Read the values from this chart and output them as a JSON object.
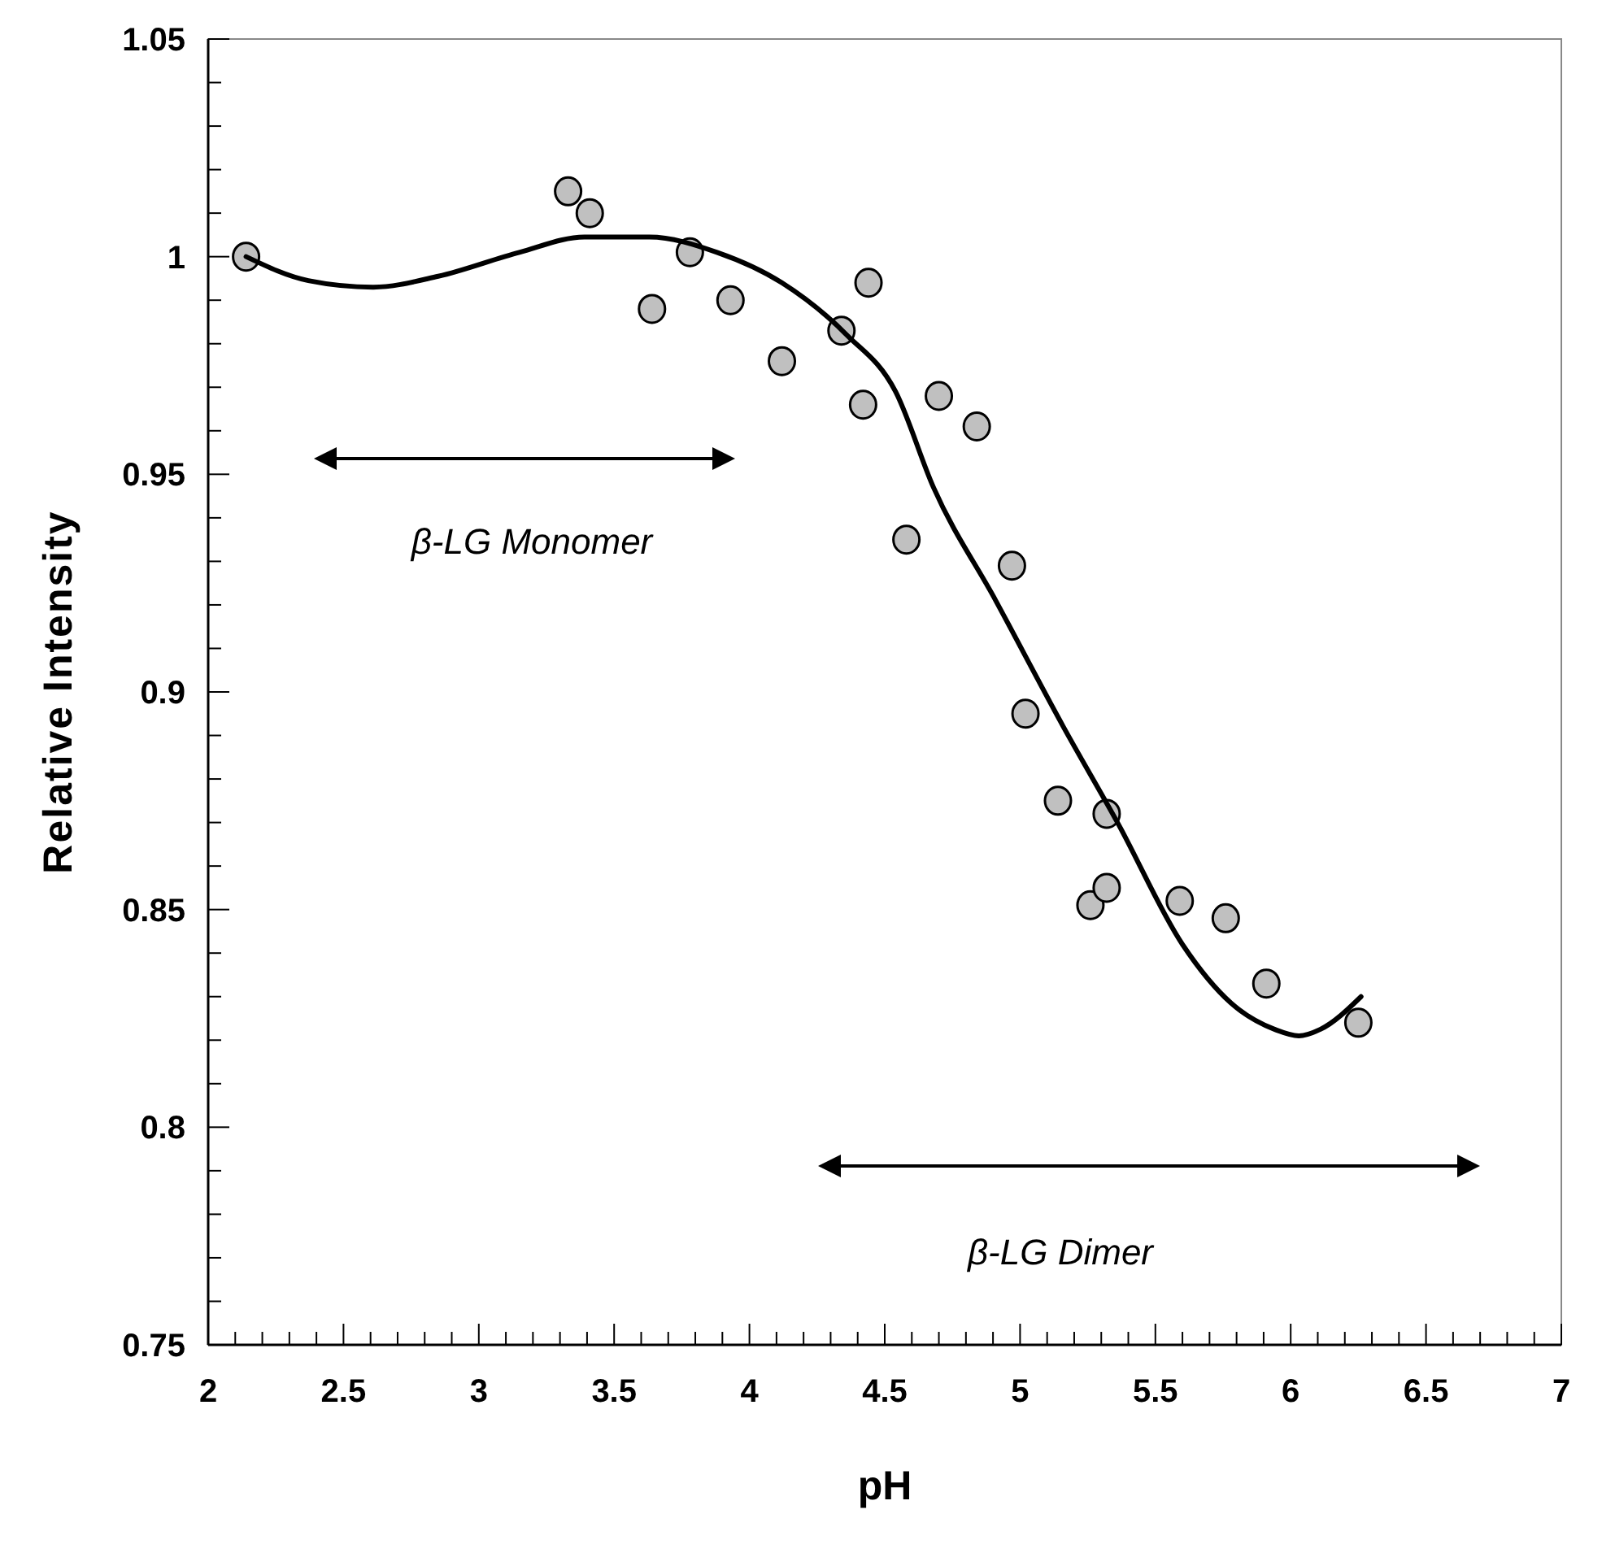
{
  "chart_data": {
    "type": "scatter",
    "xlabel": "pH",
    "ylabel": "Relative Intensity",
    "xlim": [
      2,
      7
    ],
    "ylim": [
      0.75,
      1.05
    ],
    "xticks": [
      2,
      {
        "value": 2.1,
        "label": null
      },
      {
        "value": 2.2,
        "label": null
      },
      {
        "value": 2.3,
        "label": null
      },
      {
        "value": 2.4,
        "label": null
      },
      2.5,
      {
        "value": 2.6,
        "label": null
      },
      {
        "value": 2.7,
        "label": null
      },
      {
        "value": 2.8,
        "label": null
      },
      {
        "value": 2.9,
        "label": null
      },
      3,
      {
        "value": 3.1,
        "label": null
      },
      {
        "value": 3.2,
        "label": null
      },
      {
        "value": 3.3,
        "label": null
      },
      {
        "value": 3.4,
        "label": null
      },
      3.5,
      {
        "value": 3.6,
        "label": null
      },
      {
        "value": 3.7,
        "label": null
      },
      {
        "value": 3.8,
        "label": null
      },
      {
        "value": 3.9,
        "label": null
      },
      4,
      {
        "value": 4.1,
        "label": null
      },
      {
        "value": 4.2,
        "label": null
      },
      {
        "value": 4.3,
        "label": null
      },
      {
        "value": 4.4,
        "label": null
      },
      4.5,
      {
        "value": 4.6,
        "label": null
      },
      {
        "value": 4.7,
        "label": null
      },
      {
        "value": 4.8,
        "label": null
      },
      {
        "value": 4.9,
        "label": null
      },
      5,
      {
        "value": 5.1,
        "label": null
      },
      {
        "value": 5.2,
        "label": null
      },
      {
        "value": 5.3,
        "label": null
      },
      {
        "value": 5.4,
        "label": null
      },
      5.5,
      {
        "value": 5.6,
        "label": null
      },
      {
        "value": 5.7,
        "label": null
      },
      {
        "value": 5.8,
        "label": null
      },
      {
        "value": 5.9,
        "label": null
      },
      6,
      {
        "value": 6.1,
        "label": null
      },
      {
        "value": 6.2,
        "label": null
      },
      {
        "value": 6.3,
        "label": null
      },
      {
        "value": 6.4,
        "label": null
      },
      6.5,
      {
        "value": 6.6,
        "label": null
      },
      {
        "value": 6.7,
        "label": null
      },
      {
        "value": 6.8,
        "label": null
      },
      {
        "value": 6.9,
        "label": null
      },
      7
    ],
    "yticks": [
      0.75,
      {
        "value": 0.76,
        "label": null
      },
      {
        "value": 0.77,
        "label": null
      },
      {
        "value": 0.78,
        "label": null
      },
      {
        "value": 0.79,
        "label": null
      },
      0.8,
      {
        "value": 0.81,
        "label": null
      },
      {
        "value": 0.82,
        "label": null
      },
      {
        "value": 0.83,
        "label": null
      },
      {
        "value": 0.84,
        "label": null
      },
      0.85,
      {
        "value": 0.86,
        "label": null
      },
      {
        "value": 0.87,
        "label": null
      },
      {
        "value": 0.88,
        "label": null
      },
      {
        "value": 0.89,
        "label": null
      },
      0.9,
      {
        "value": 0.91,
        "label": null
      },
      {
        "value": 0.92,
        "label": null
      },
      {
        "value": 0.93,
        "label": null
      },
      {
        "value": 0.94,
        "label": null
      },
      0.95,
      {
        "value": 0.96,
        "label": null
      },
      {
        "value": 0.97,
        "label": null
      },
      {
        "value": 0.98,
        "label": null
      },
      {
        "value": 0.99,
        "label": null
      },
      1,
      {
        "value": 1.01,
        "label": null
      },
      {
        "value": 1.02,
        "label": null
      },
      {
        "value": 1.03,
        "label": null
      },
      {
        "value": 1.04,
        "label": null
      },
      1.05
    ],
    "grid": false,
    "series": [
      {
        "color": "#c0c0c0",
        "marker": "circle",
        "x": [
          2.14,
          3.33,
          3.41,
          3.64,
          3.78,
          3.93,
          4.12,
          4.34,
          4.42,
          4.44,
          4.58,
          4.7,
          4.84,
          4.97,
          5.02,
          5.14,
          5.26,
          5.32,
          5.32,
          5.59,
          5.76,
          5.91,
          6.25
        ],
        "values": [
          1.0,
          1.015,
          1.01,
          0.988,
          1.001,
          0.99,
          0.976,
          0.983,
          0.966,
          0.994,
          0.935,
          0.968,
          0.961,
          0.929,
          0.895,
          0.875,
          0.851,
          0.855,
          0.872,
          0.852,
          0.848,
          0.833,
          0.824
        ]
      },
      {
        "type": "line",
        "color": "#000000",
        "marker": "none",
        "line_style": "solid",
        "x": [
          2.14,
          2.37,
          2.61,
          2.85,
          3.15,
          3.39,
          3.63,
          3.88,
          4.12,
          4.36,
          4.54,
          4.68,
          4.91,
          5.16,
          5.36,
          5.6,
          5.78,
          5.94,
          6.03,
          6.11,
          6.26
        ],
        "values": [
          1.0,
          0.9945,
          0.993,
          0.9955,
          1.001,
          1.0045,
          1.0045,
          1.001,
          0.994,
          0.982,
          0.969,
          0.947,
          0.921,
          0.892,
          0.87,
          0.842,
          0.8285,
          0.8225,
          0.821,
          0.8225,
          0.83
        ]
      }
    ],
    "annotations": [
      "β-LG Monomer",
      "β-LG Dimer"
    ]
  }
}
